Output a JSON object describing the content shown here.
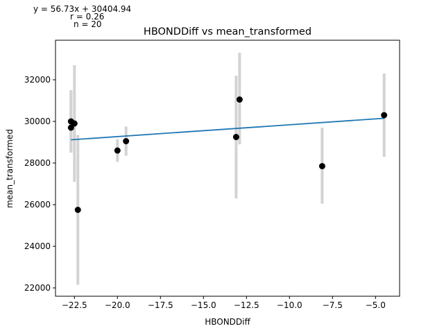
{
  "chart_data": {
    "type": "scatter",
    "title": "HBONDDiff vs mean_transformed",
    "xlabel": "HBONDDiff",
    "ylabel": "mean_transformed",
    "annotations": [
      "y = 56.73x + 30404.94",
      "r = 0.26",
      "n = 20"
    ],
    "xlim": [
      -23.6,
      -3.6
    ],
    "ylim": [
      21600,
      33900
    ],
    "xticks": [
      -22.5,
      -20.0,
      -17.5,
      -15.0,
      -12.5,
      -10.0,
      -7.5,
      -5.0
    ],
    "xtick_labels": [
      "−22.5",
      "−20.0",
      "−17.5",
      "−15.0",
      "−12.5",
      "−10.0",
      "−7.5",
      "−5.0"
    ],
    "yticks": [
      22000,
      24000,
      26000,
      28000,
      30000,
      32000
    ],
    "ytick_labels": [
      "22000",
      "24000",
      "26000",
      "28000",
      "30000",
      "32000"
    ],
    "grid": false,
    "regression": {
      "slope": 56.73,
      "intercept": 30404.94
    },
    "points": [
      {
        "x": -22.7,
        "y": 29700,
        "err_low": 28500,
        "err_high": 31500
      },
      {
        "x": -22.7,
        "y": 30000,
        "err_low": 28500,
        "err_high": 31500
      },
      {
        "x": -22.5,
        "y": 29900,
        "err_low": 27100,
        "err_high": 32700
      },
      {
        "x": -22.3,
        "y": 25750,
        "err_low": 22150,
        "err_high": 29350
      },
      {
        "x": -20.0,
        "y": 28600,
        "err_low": 28050,
        "err_high": 29150
      },
      {
        "x": -19.5,
        "y": 29050,
        "err_low": 28350,
        "err_high": 29750
      },
      {
        "x": -13.1,
        "y": 29250,
        "err_low": 26300,
        "err_high": 32200
      },
      {
        "x": -12.9,
        "y": 31050,
        "err_low": 28900,
        "err_high": 33300
      },
      {
        "x": -8.1,
        "y": 27850,
        "err_low": 26050,
        "err_high": 29700
      },
      {
        "x": -4.5,
        "y": 30300,
        "err_low": 28300,
        "err_high": 32300
      }
    ],
    "colors": {
      "points": "#000000",
      "errorbars": "#d3d3d3",
      "fit_line": "#1f77b4"
    }
  }
}
